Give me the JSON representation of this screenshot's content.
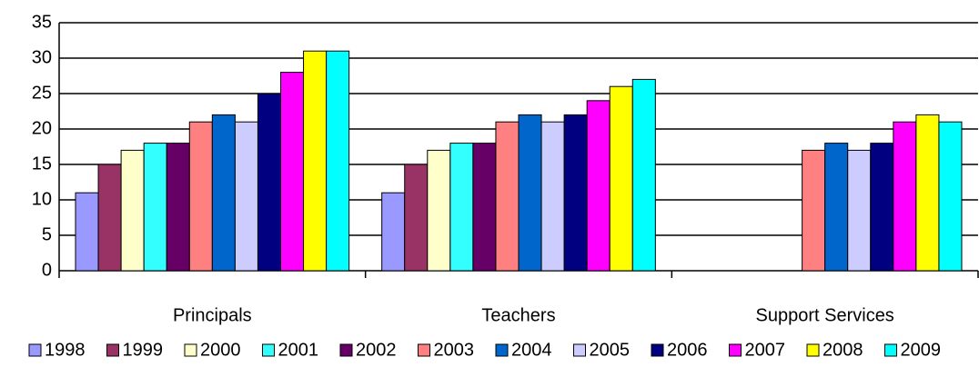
{
  "chart_data": {
    "type": "bar",
    "categories": [
      "Principals",
      "Teachers",
      "Support Services"
    ],
    "series": [
      {
        "name": "1998",
        "color": "#9999ff",
        "values": [
          11,
          11,
          null
        ]
      },
      {
        "name": "1999",
        "color": "#993366",
        "values": [
          15,
          15,
          null
        ]
      },
      {
        "name": "2000",
        "color": "#ffffcc",
        "values": [
          17,
          17,
          null
        ]
      },
      {
        "name": "2001",
        "color": "#33ffff",
        "values": [
          18,
          18,
          null
        ]
      },
      {
        "name": "2002",
        "color": "#660066",
        "values": [
          18,
          18,
          null
        ]
      },
      {
        "name": "2003",
        "color": "#ff8080",
        "values": [
          21,
          21,
          17
        ]
      },
      {
        "name": "2004",
        "color": "#0066cc",
        "values": [
          22,
          22,
          18
        ]
      },
      {
        "name": "2005",
        "color": "#ccccff",
        "values": [
          21,
          21,
          17
        ]
      },
      {
        "name": "2006",
        "color": "#000080",
        "values": [
          25,
          22,
          18
        ]
      },
      {
        "name": "2007",
        "color": "#ff00ff",
        "values": [
          28,
          24,
          21
        ]
      },
      {
        "name": "2008",
        "color": "#ffff00",
        "values": [
          31,
          26,
          22
        ]
      },
      {
        "name": "2009",
        "color": "#00ffff",
        "values": [
          31,
          27,
          21
        ]
      }
    ],
    "ylim": [
      0,
      35
    ],
    "yticks": [
      0,
      5,
      10,
      15,
      20,
      25,
      30,
      35
    ],
    "grid": true,
    "legend": "bottom"
  }
}
